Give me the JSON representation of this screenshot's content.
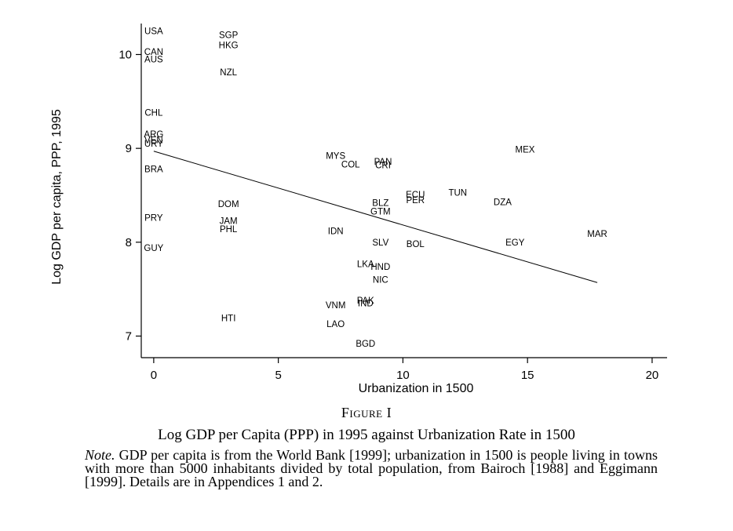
{
  "chart_data": {
    "type": "scatter",
    "xlabel": "Urbanization in 1500",
    "ylabel": "Log GDP per capita, PPP, 1995",
    "xlim": [
      -0.5,
      20.6
    ],
    "ylim": [
      6.77,
      10.33
    ],
    "xticks": [
      0,
      5,
      10,
      15,
      20
    ],
    "yticks": [
      7,
      8,
      9,
      10
    ],
    "points": [
      {
        "label": "USA",
        "x": 0,
        "y": 10.25
      },
      {
        "label": "CAN",
        "x": 0,
        "y": 10.03
      },
      {
        "label": "AUS",
        "x": 0,
        "y": 9.95
      },
      {
        "label": "CHL",
        "x": 0,
        "y": 9.38
      },
      {
        "label": "ARG",
        "x": 0,
        "y": 9.15
      },
      {
        "label": "VEN",
        "x": 0,
        "y": 9.09
      },
      {
        "label": "URY",
        "x": 0,
        "y": 9.05
      },
      {
        "label": "BRA",
        "x": 0,
        "y": 8.78
      },
      {
        "label": "PRY",
        "x": 0,
        "y": 8.26
      },
      {
        "label": "GUY",
        "x": 0,
        "y": 7.94
      },
      {
        "label": "SGP",
        "x": 3,
        "y": 10.21
      },
      {
        "label": "HKG",
        "x": 3,
        "y": 10.1
      },
      {
        "label": "NZL",
        "x": 3,
        "y": 9.81
      },
      {
        "label": "DOM",
        "x": 3,
        "y": 8.41
      },
      {
        "label": "JAM",
        "x": 3,
        "y": 8.23
      },
      {
        "label": "PHL",
        "x": 3,
        "y": 8.14
      },
      {
        "label": "HTI",
        "x": 3,
        "y": 7.19
      },
      {
        "label": "MYS",
        "x": 7.3,
        "y": 8.92
      },
      {
        "label": "COL",
        "x": 7.9,
        "y": 8.83
      },
      {
        "label": "PAN",
        "x": 9.2,
        "y": 8.86
      },
      {
        "label": "CRI",
        "x": 9.2,
        "y": 8.82
      },
      {
        "label": "IDN",
        "x": 7.3,
        "y": 8.12
      },
      {
        "label": "VNM",
        "x": 7.3,
        "y": 7.33
      },
      {
        "label": "LAO",
        "x": 7.3,
        "y": 7.13
      },
      {
        "label": "BLZ",
        "x": 9.1,
        "y": 8.42
      },
      {
        "label": "GTM",
        "x": 9.1,
        "y": 8.33
      },
      {
        "label": "SLV",
        "x": 9.1,
        "y": 8.0
      },
      {
        "label": "LKA",
        "x": 8.5,
        "y": 7.77
      },
      {
        "label": "HND",
        "x": 9.1,
        "y": 7.74
      },
      {
        "label": "NIC",
        "x": 9.1,
        "y": 7.6
      },
      {
        "label": "PAK",
        "x": 8.5,
        "y": 7.38
      },
      {
        "label": "IND",
        "x": 8.5,
        "y": 7.35
      },
      {
        "label": "BGD",
        "x": 8.5,
        "y": 6.92
      },
      {
        "label": "ECU",
        "x": 10.5,
        "y": 8.51
      },
      {
        "label": "PER",
        "x": 10.5,
        "y": 8.45
      },
      {
        "label": "BOL",
        "x": 10.5,
        "y": 7.98
      },
      {
        "label": "TUN",
        "x": 12.2,
        "y": 8.53
      },
      {
        "label": "DZA",
        "x": 14,
        "y": 8.43
      },
      {
        "label": "MEX",
        "x": 14.9,
        "y": 8.99
      },
      {
        "label": "EGY",
        "x": 14.5,
        "y": 8.0
      },
      {
        "label": "MAR",
        "x": 17.8,
        "y": 8.09
      }
    ],
    "fit_line": {
      "x": [
        0,
        17.8
      ],
      "y": [
        8.97,
        7.57
      ]
    }
  },
  "caption": {
    "figure_number": "Figure I",
    "title": "Log GDP per Capita (PPP) in 1995 against Urbanization Rate in 1500",
    "note_label": "Note.",
    "note_text": "GDP per capita is from the World Bank [1999]; urbanization in 1500 is people living in towns with more than 5000 inhabitants divided by total population, from Bairoch [1988] and Eggimann [1999]. Details are in Appendices 1 and 2."
  }
}
